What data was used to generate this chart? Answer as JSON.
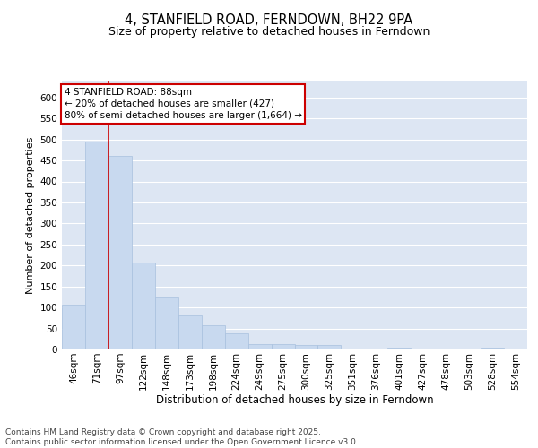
{
  "title": "4, STANFIELD ROAD, FERNDOWN, BH22 9PA",
  "subtitle": "Size of property relative to detached houses in Ferndown",
  "xlabel": "Distribution of detached houses by size in Ferndown",
  "ylabel": "Number of detached properties",
  "categories": [
    "46sqm",
    "71sqm",
    "97sqm",
    "122sqm",
    "148sqm",
    "173sqm",
    "198sqm",
    "224sqm",
    "249sqm",
    "275sqm",
    "300sqm",
    "325sqm",
    "351sqm",
    "376sqm",
    "401sqm",
    "427sqm",
    "478sqm",
    "503sqm",
    "528sqm",
    "554sqm"
  ],
  "values": [
    106,
    494,
    460,
    208,
    123,
    82,
    57,
    39,
    13,
    13,
    10,
    11,
    2,
    0,
    5,
    0,
    0,
    0,
    5,
    0
  ],
  "bar_color": "#c8d9ef",
  "bar_edge_color": "#a8c0de",
  "background_color": "#dde6f3",
  "grid_color": "#ffffff",
  "vline_x": 1.5,
  "vline_color": "#cc0000",
  "annotation_text": "4 STANFIELD ROAD: 88sqm\n← 20% of detached houses are smaller (427)\n80% of semi-detached houses are larger (1,664) →",
  "annotation_box_color": "#ffffff",
  "annotation_box_edge": "#cc0000",
  "footer_text": "Contains HM Land Registry data © Crown copyright and database right 2025.\nContains public sector information licensed under the Open Government Licence v3.0.",
  "ylim": [
    0,
    640
  ],
  "yticks": [
    0,
    50,
    100,
    150,
    200,
    250,
    300,
    350,
    400,
    450,
    500,
    550,
    600
  ],
  "title_fontsize": 10.5,
  "subtitle_fontsize": 9,
  "xlabel_fontsize": 8.5,
  "ylabel_fontsize": 8,
  "tick_fontsize": 7.5,
  "footer_fontsize": 6.5,
  "annot_fontsize": 7.5
}
